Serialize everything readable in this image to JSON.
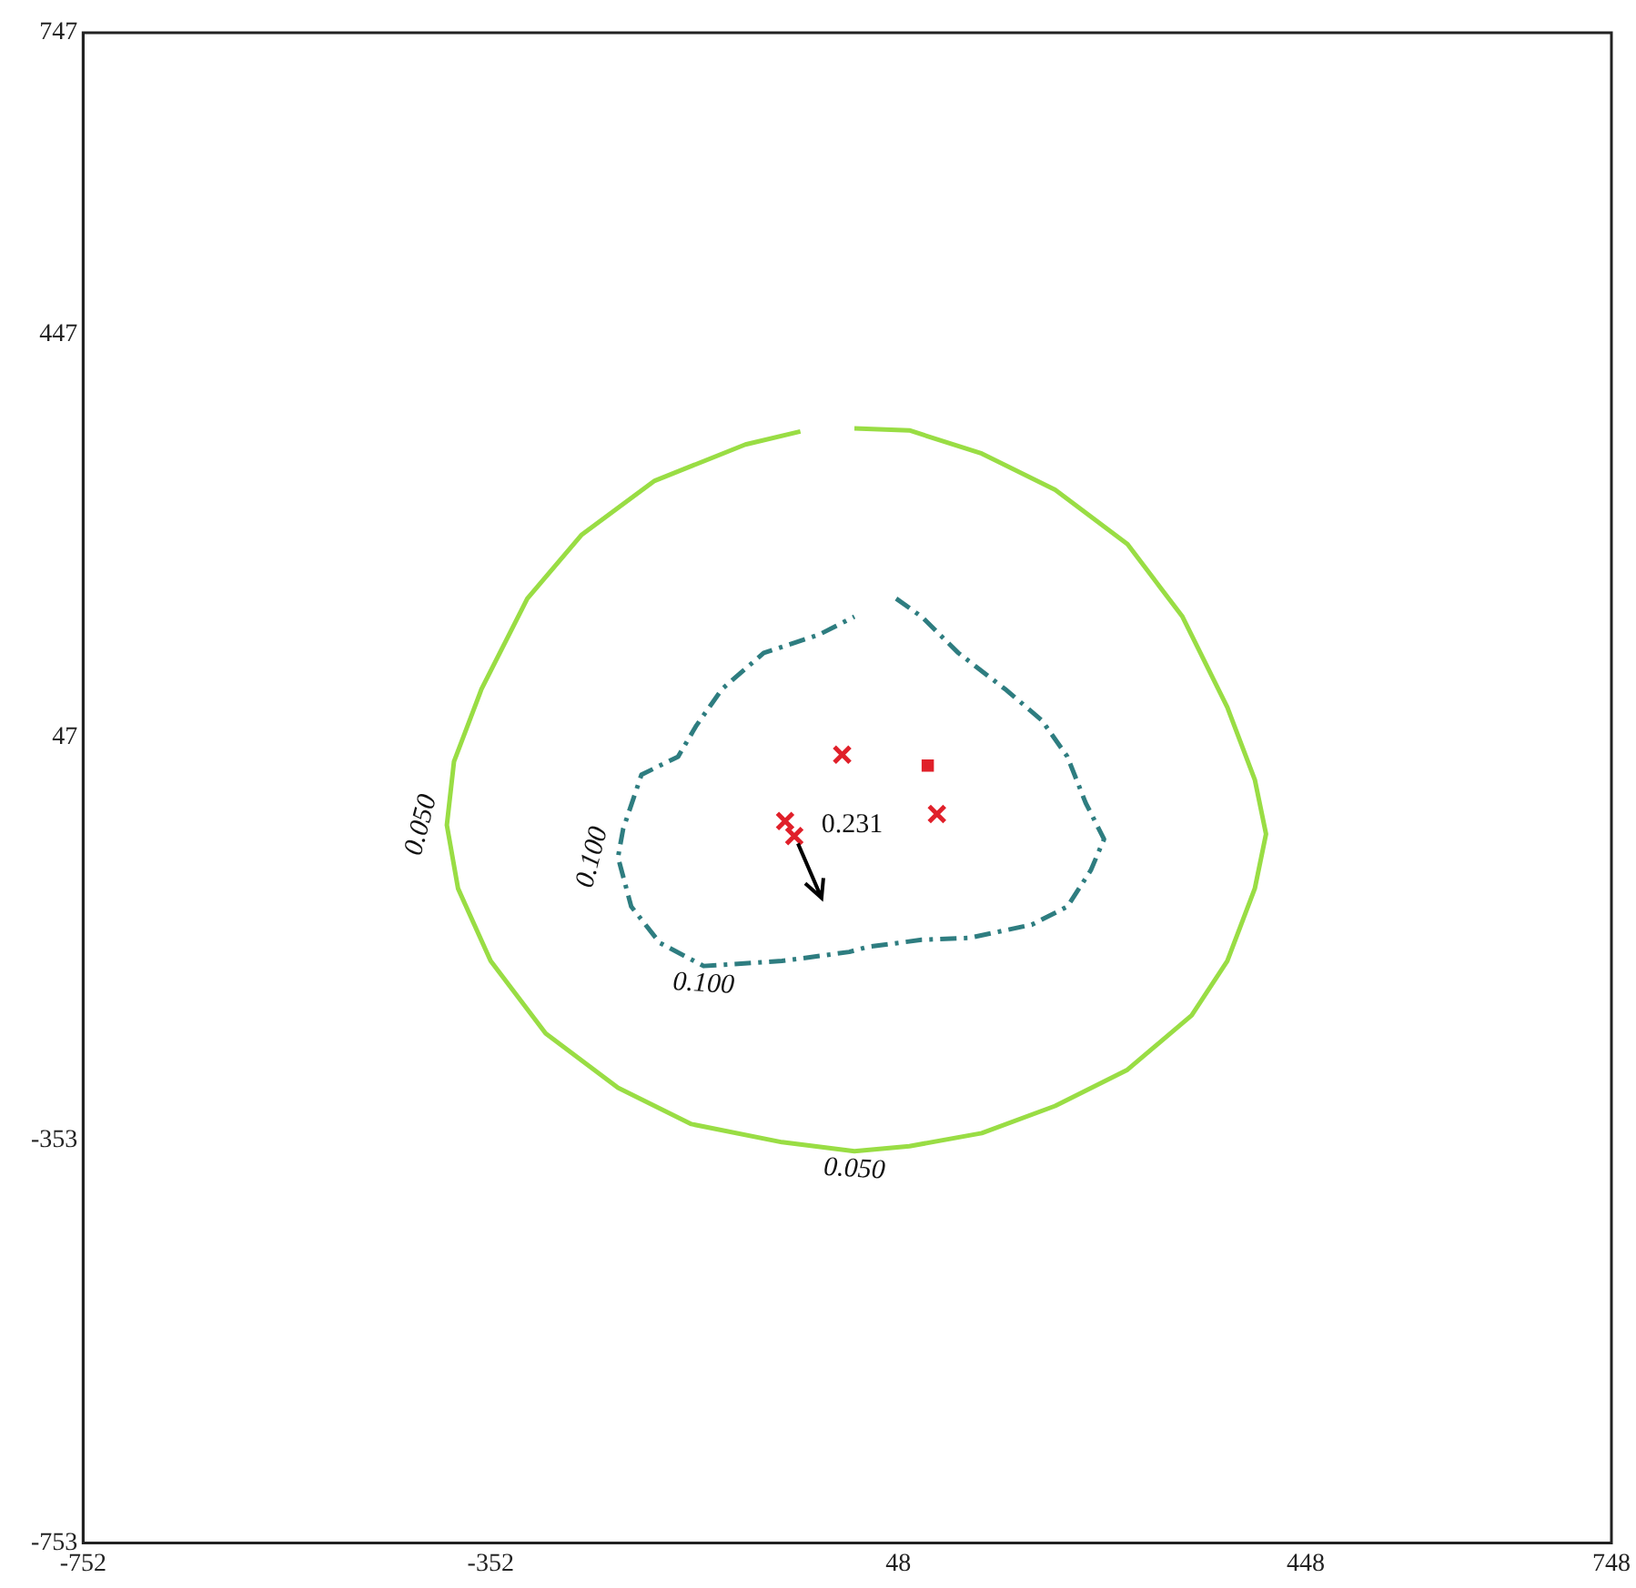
{
  "chart_data": {
    "type": "scatter",
    "xlim": [
      -752,
      748
    ],
    "ylim": [
      -753,
      747
    ],
    "xticks": [
      -752,
      -352,
      48,
      448,
      748
    ],
    "yticks": [
      -753,
      -353,
      47,
      447,
      747
    ],
    "grid": false,
    "legend": false,
    "series": [
      {
        "name": "0.050",
        "type": "line",
        "color": "#99dd44",
        "marker": "none",
        "line_style": "solid",
        "x": [
          5,
          59,
          130,
          202,
          273,
          327,
          371,
          398,
          409,
          398,
          371,
          336,
          273,
          202,
          130,
          59,
          5,
          -66,
          -155,
          -227,
          -298,
          -352,
          -384,
          -395,
          -388,
          -361,
          -316,
          -263,
          -191,
          -102,
          -48
        ],
        "values": [
          354,
          352,
          329,
          293,
          239,
          167,
          77,
          5,
          -49,
          -103,
          -175,
          -229,
          -283,
          -319,
          -346,
          -359,
          -364,
          -355,
          -337,
          -301,
          -247,
          -175,
          -103,
          -40,
          23,
          95,
          185,
          248,
          302,
          338,
          351
        ]
      },
      {
        "name": "0.100",
        "type": "line",
        "color": "#2e7d80",
        "marker": "none",
        "line_style": "dashed",
        "x": [
          46,
          71,
          107,
          153,
          189,
          214,
          232,
          250,
          237,
          214,
          179,
          118,
          71,
          18,
          0,
          -66,
          -143,
          -186,
          -214,
          -227,
          -222,
          -204,
          -168,
          -150,
          -125,
          -84,
          -30,
          5
        ],
        "values": [
          185,
          167,
          131,
          95,
          64,
          28,
          -18,
          -54,
          -85,
          -121,
          -139,
          -152,
          -154,
          -161,
          -166,
          -175,
          -180,
          -157,
          -121,
          -72,
          -44,
          10,
          28,
          59,
          95,
          131,
          149,
          167
        ]
      },
      {
        "color": "#e0202a",
        "marker": "cross",
        "x": [
          -7,
          86,
          -63,
          -54
        ],
        "values": [
          30,
          -29,
          -36,
          -51
        ]
      },
      {
        "color": "#e0202a",
        "marker": "square",
        "x": [
          77
        ],
        "values": [
          19
        ]
      }
    ],
    "annotations": [
      "0.231"
    ]
  }
}
